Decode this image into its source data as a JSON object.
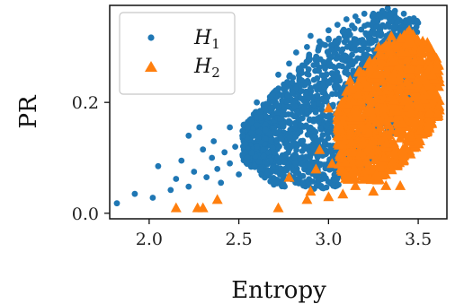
{
  "chart_data": {
    "type": "scatter",
    "title": "",
    "xlabel": "Entropy",
    "ylabel": "PR",
    "xlim": [
      1.78,
      3.66
    ],
    "ylim": [
      -0.01,
      0.375
    ],
    "xticks": [
      {
        "value": 2.0,
        "label": "2.0"
      },
      {
        "value": 2.5,
        "label": "2.5"
      },
      {
        "value": 3.0,
        "label": "3.0"
      },
      {
        "value": 3.5,
        "label": "3.5"
      }
    ],
    "yticks": [
      {
        "value": 0.0,
        "label": "0.0"
      },
      {
        "value": 0.2,
        "label": "0.2"
      }
    ],
    "grid": false,
    "legend_position": "top-left",
    "series": [
      {
        "name": "H",
        "name_sub": "1",
        "marker": "circle",
        "color": "#1f77b4",
        "points": [
          [
            1.82,
            0.018
          ],
          [
            1.92,
            0.035
          ],
          [
            2.02,
            0.028
          ],
          [
            2.05,
            0.085
          ],
          [
            2.12,
            0.042
          ],
          [
            2.15,
            0.062
          ],
          [
            2.18,
            0.095
          ],
          [
            2.22,
            0.048
          ],
          [
            2.25,
            0.075
          ],
          [
            2.22,
            0.14
          ],
          [
            2.28,
            0.155
          ],
          [
            2.3,
            0.115
          ],
          [
            2.32,
            0.065
          ],
          [
            2.35,
            0.1
          ],
          [
            2.38,
            0.08
          ],
          [
            2.36,
            0.13
          ],
          [
            2.4,
            0.055
          ],
          [
            2.42,
            0.11
          ],
          [
            2.45,
            0.09
          ],
          [
            2.45,
            0.155
          ],
          [
            2.48,
            0.12
          ],
          [
            2.5,
            0.07
          ],
          [
            2.52,
            0.14
          ],
          [
            2.55,
            0.1
          ],
          [
            2.57,
            0.165
          ],
          [
            2.6,
            0.12
          ],
          [
            2.6,
            0.2
          ],
          [
            2.62,
            0.08
          ],
          [
            2.65,
            0.15
          ],
          [
            2.68,
            0.21
          ],
          [
            2.7,
            0.11
          ],
          [
            2.72,
            0.25
          ],
          [
            2.73,
            0.17
          ],
          [
            2.78,
            0.27
          ],
          [
            2.8,
            0.2
          ],
          [
            2.82,
            0.29
          ],
          [
            2.85,
            0.24
          ],
          [
            2.88,
            0.3
          ],
          [
            2.9,
            0.32
          ],
          [
            2.95,
            0.31
          ],
          [
            3.0,
            0.33
          ],
          [
            3.05,
            0.34
          ],
          [
            3.1,
            0.35
          ],
          [
            3.15,
            0.355
          ],
          [
            3.2,
            0.36
          ],
          [
            3.25,
            0.36
          ],
          [
            3.3,
            0.365
          ],
          [
            3.33,
            0.37
          ],
          [
            3.37,
            0.365
          ],
          [
            3.42,
            0.36
          ]
        ],
        "cloud": {
          "count": 1800,
          "seed": 7,
          "x_range": [
            2.52,
            3.5
          ],
          "y_lower": [
            [
              2.5,
              0.1
            ],
            [
              2.7,
              0.05
            ],
            [
              3.0,
              0.04
            ],
            [
              3.2,
              0.08
            ],
            [
              3.5,
              0.2
            ]
          ],
          "y_upper": [
            [
              2.5,
              0.15
            ],
            [
              2.7,
              0.22
            ],
            [
              2.9,
              0.29
            ],
            [
              3.1,
              0.34
            ],
            [
              3.3,
              0.365
            ],
            [
              3.5,
              0.35
            ]
          ]
        }
      },
      {
        "name": "H",
        "name_sub": "2",
        "marker": "triangle",
        "color": "#ff7f0e",
        "points": [
          [
            2.15,
            0.01
          ],
          [
            2.27,
            0.01
          ],
          [
            2.3,
            0.01
          ],
          [
            2.38,
            0.025
          ],
          [
            2.72,
            0.01
          ],
          [
            2.78,
            0.065
          ],
          [
            2.88,
            0.025
          ],
          [
            2.9,
            0.04
          ],
          [
            2.93,
            0.08
          ],
          [
            2.95,
            0.115
          ],
          [
            3.0,
            0.03
          ],
          [
            3.0,
            0.19
          ],
          [
            3.02,
            0.09
          ],
          [
            3.05,
            0.14
          ],
          [
            3.08,
            0.035
          ],
          [
            3.1,
            0.22
          ],
          [
            3.12,
            0.24
          ],
          [
            3.15,
            0.05
          ],
          [
            3.18,
            0.255
          ],
          [
            3.22,
            0.27
          ],
          [
            3.25,
            0.04
          ],
          [
            3.28,
            0.3
          ],
          [
            3.32,
            0.05
          ],
          [
            3.35,
            0.32
          ],
          [
            3.4,
            0.05
          ],
          [
            3.45,
            0.33
          ],
          [
            3.52,
            0.3
          ],
          [
            3.58,
            0.25
          ]
        ],
        "cloud": {
          "count": 1000,
          "seed": 23,
          "x_range": [
            3.05,
            3.62
          ],
          "y_lower": [
            [
              3.0,
              0.12
            ],
            [
              3.1,
              0.06
            ],
            [
              3.3,
              0.06
            ],
            [
              3.45,
              0.1
            ],
            [
              3.62,
              0.18
            ]
          ],
          "y_upper": [
            [
              3.0,
              0.15
            ],
            [
              3.15,
              0.25
            ],
            [
              3.3,
              0.3
            ],
            [
              3.45,
              0.33
            ],
            [
              3.55,
              0.31
            ],
            [
              3.62,
              0.27
            ]
          ]
        }
      }
    ]
  }
}
